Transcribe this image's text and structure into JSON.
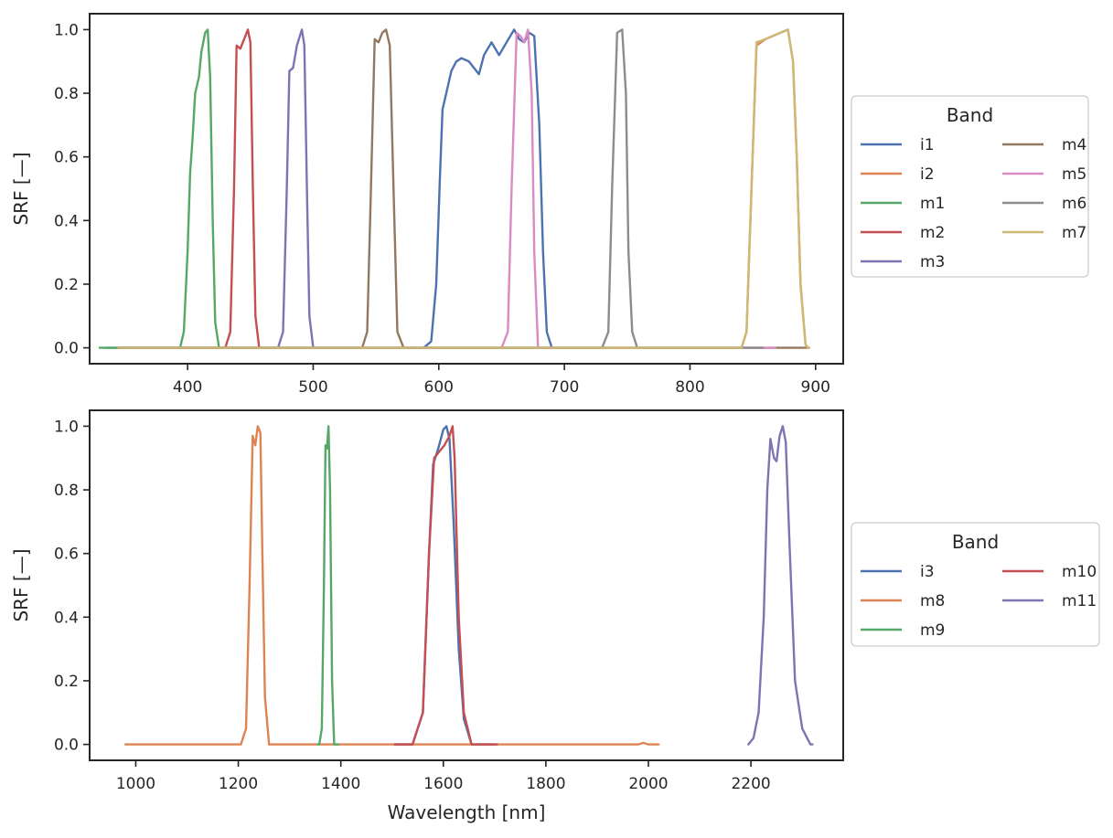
{
  "colors": {
    "i1": "#4c72b0",
    "i2": "#dd8452",
    "m1": "#55a868",
    "m2": "#c44e52",
    "m3": "#8172b3",
    "m4": "#937860",
    "m5": "#da8bc3",
    "m6": "#8c8c8c",
    "m7": "#ccb974",
    "i3": "#4c72b0",
    "m8": "#dd8452",
    "m9": "#55a868",
    "m10": "#c44e52",
    "m11": "#8172b3"
  },
  "chart_data": [
    {
      "type": "line",
      "title": "",
      "xlabel": "",
      "ylabel": "SRF [—]",
      "xlim": [
        322,
        922
      ],
      "ylim": [
        -0.05,
        1.05
      ],
      "xticks": [
        400,
        500,
        600,
        700,
        800,
        900
      ],
      "yticks": [
        0.0,
        0.2,
        0.4,
        0.6,
        0.8,
        1.0
      ],
      "grid": false,
      "legend": {
        "title": "Band",
        "placement": "outside-right",
        "columns": 2
      },
      "series": [
        {
          "name": "i1",
          "zero_range": [
            335,
            690
          ],
          "points": [
            [
              588,
              0
            ],
            [
              594,
              0.02
            ],
            [
              598,
              0.2
            ],
            [
              601,
              0.55
            ],
            [
              603,
              0.75
            ],
            [
              606,
              0.8
            ],
            [
              610,
              0.87
            ],
            [
              614,
              0.9
            ],
            [
              618,
              0.91
            ],
            [
              624,
              0.9
            ],
            [
              628,
              0.88
            ],
            [
              632,
              0.86
            ],
            [
              636,
              0.92
            ],
            [
              642,
              0.96
            ],
            [
              648,
              0.92
            ],
            [
              654,
              0.96
            ],
            [
              660,
              1.0
            ],
            [
              664,
              0.97
            ],
            [
              668,
              0.96
            ],
            [
              672,
              0.99
            ],
            [
              676,
              0.98
            ],
            [
              680,
              0.7
            ],
            [
              683,
              0.3
            ],
            [
              686,
              0.05
            ],
            [
              690,
              0
            ]
          ]
        },
        {
          "name": "i2",
          "zero_range": [
            345,
            885
          ],
          "points": [
            [
              841,
              0
            ],
            [
              845,
              0.05
            ],
            [
              849,
              0.5
            ],
            [
              853,
              0.95
            ],
            [
              860,
              0.97
            ],
            [
              866,
              0.98
            ],
            [
              872,
              0.99
            ],
            [
              878,
              1.0
            ],
            [
              882,
              0.9
            ],
            [
              885,
              0.6
            ],
            [
              888,
              0.2
            ],
            [
              892,
              0.01
            ],
            [
              894,
              0
            ]
          ]
        },
        {
          "name": "m1",
          "zero_range": [
            330,
            430
          ],
          "points": [
            [
              394,
              0
            ],
            [
              397,
              0.05
            ],
            [
              400,
              0.3
            ],
            [
              402,
              0.55
            ],
            [
              404,
              0.66
            ],
            [
              406,
              0.8
            ],
            [
              409,
              0.85
            ],
            [
              411,
              0.93
            ],
            [
              414,
              0.99
            ],
            [
              416,
              1.0
            ],
            [
              418,
              0.85
            ],
            [
              420,
              0.4
            ],
            [
              422,
              0.08
            ],
            [
              425,
              0
            ]
          ]
        },
        {
          "name": "m2",
          "zero_range": [
            345,
            465
          ],
          "points": [
            [
              430,
              0
            ],
            [
              434,
              0.05
            ],
            [
              437,
              0.5
            ],
            [
              439,
              0.95
            ],
            [
              442,
              0.94
            ],
            [
              445,
              0.97
            ],
            [
              448,
              1.0
            ],
            [
              450,
              0.96
            ],
            [
              452,
              0.5
            ],
            [
              454,
              0.1
            ],
            [
              457,
              0
            ]
          ]
        },
        {
          "name": "m3",
          "zero_range": [
            345,
            515
          ],
          "points": [
            [
              472,
              0
            ],
            [
              476,
              0.05
            ],
            [
              479,
              0.5
            ],
            [
              481,
              0.87
            ],
            [
              484,
              0.88
            ],
            [
              487,
              0.95
            ],
            [
              491,
              1.0
            ],
            [
              493,
              0.95
            ],
            [
              495,
              0.5
            ],
            [
              497,
              0.1
            ],
            [
              500,
              0
            ]
          ]
        },
        {
          "name": "m4",
          "zero_range": [
            345,
            895
          ],
          "points": [
            [
              539,
              0
            ],
            [
              543,
              0.05
            ],
            [
              546,
              0.5
            ],
            [
              549,
              0.97
            ],
            [
              552,
              0.96
            ],
            [
              555,
              0.99
            ],
            [
              558,
              1.0
            ],
            [
              561,
              0.95
            ],
            [
              564,
              0.5
            ],
            [
              567,
              0.05
            ],
            [
              572,
              0
            ]
          ]
        },
        {
          "name": "m5",
          "zero_range": [
            345,
            868
          ],
          "points": [
            [
              650,
              0
            ],
            [
              655,
              0.05
            ],
            [
              658,
              0.5
            ],
            [
              662,
              0.99
            ],
            [
              665,
              0.98
            ],
            [
              668,
              0.96
            ],
            [
              671,
              1.0
            ],
            [
              674,
              0.8
            ],
            [
              676,
              0.3
            ],
            [
              679,
              0
            ]
          ]
        },
        {
          "name": "m6",
          "zero_range": [
            345,
            858
          ],
          "points": [
            [
              730,
              0
            ],
            [
              735,
              0.05
            ],
            [
              738,
              0.5
            ],
            [
              742,
              0.99
            ],
            [
              746,
              1.0
            ],
            [
              749,
              0.8
            ],
            [
              751,
              0.3
            ],
            [
              754,
              0.05
            ],
            [
              758,
              0
            ]
          ]
        },
        {
          "name": "m7",
          "zero_range": [
            345,
            895
          ],
          "points": [
            [
              841,
              0
            ],
            [
              845,
              0.05
            ],
            [
              849,
              0.5
            ],
            [
              853,
              0.96
            ],
            [
              860,
              0.97
            ],
            [
              866,
              0.98
            ],
            [
              872,
              0.99
            ],
            [
              878,
              1.0
            ],
            [
              882,
              0.9
            ],
            [
              885,
              0.6
            ],
            [
              888,
              0.2
            ],
            [
              892,
              0.01
            ],
            [
              894,
              0
            ]
          ]
        }
      ]
    },
    {
      "type": "line",
      "title": "",
      "xlabel": "Wavelength [nm]",
      "ylabel": "SRF [—]",
      "xlim": [
        910,
        2380
      ],
      "ylim": [
        -0.05,
        1.05
      ],
      "xticks": [
        1000,
        1200,
        1400,
        1600,
        1800,
        2000,
        2200
      ],
      "yticks": [
        0.0,
        0.2,
        0.4,
        0.6,
        0.8,
        1.0
      ],
      "grid": false,
      "legend": {
        "title": "Band",
        "placement": "outside-right",
        "columns": 2
      },
      "series": [
        {
          "name": "i3",
          "zero_range": [
            1505,
            1700
          ],
          "points": [
            [
              1540,
              0
            ],
            [
              1560,
              0.1
            ],
            [
              1572,
              0.6
            ],
            [
              1580,
              0.88
            ],
            [
              1590,
              0.93
            ],
            [
              1600,
              0.99
            ],
            [
              1606,
              1.0
            ],
            [
              1612,
              0.96
            ],
            [
              1620,
              0.7
            ],
            [
              1630,
              0.3
            ],
            [
              1640,
              0.08
            ],
            [
              1655,
              0
            ]
          ]
        },
        {
          "name": "m8",
          "zero_range": [
            980,
            2020
          ],
          "points": [
            [
              1205,
              0
            ],
            [
              1215,
              0.05
            ],
            [
              1222,
              0.5
            ],
            [
              1228,
              0.97
            ],
            [
              1233,
              0.94
            ],
            [
              1238,
              1.0
            ],
            [
              1243,
              0.98
            ],
            [
              1247,
              0.6
            ],
            [
              1252,
              0.15
            ],
            [
              1260,
              0
            ],
            [
              1980,
              0
            ],
            [
              1990,
              0.005
            ],
            [
              2000,
              0
            ]
          ]
        },
        {
          "name": "m9",
          "zero_range": [
            1355,
            1395
          ],
          "points": [
            [
              1358,
              0
            ],
            [
              1363,
              0.05
            ],
            [
              1367,
              0.5
            ],
            [
              1370,
              0.94
            ],
            [
              1373,
              0.93
            ],
            [
              1376,
              1.0
            ],
            [
              1379,
              0.8
            ],
            [
              1383,
              0.2
            ],
            [
              1387,
              0
            ]
          ]
        },
        {
          "name": "m10",
          "zero_range": [
            1505,
            1705
          ],
          "points": [
            [
              1540,
              0
            ],
            [
              1560,
              0.1
            ],
            [
              1572,
              0.6
            ],
            [
              1582,
              0.9
            ],
            [
              1592,
              0.92
            ],
            [
              1602,
              0.94
            ],
            [
              1612,
              0.97
            ],
            [
              1618,
              1.0
            ],
            [
              1622,
              0.9
            ],
            [
              1630,
              0.4
            ],
            [
              1640,
              0.1
            ],
            [
              1655,
              0
            ]
          ]
        },
        {
          "name": "m11",
          "zero_range": [
            2195,
            2320
          ],
          "points": [
            [
              2195,
              0
            ],
            [
              2205,
              0.02
            ],
            [
              2215,
              0.1
            ],
            [
              2225,
              0.4
            ],
            [
              2232,
              0.8
            ],
            [
              2238,
              0.96
            ],
            [
              2245,
              0.9
            ],
            [
              2250,
              0.89
            ],
            [
              2256,
              0.97
            ],
            [
              2262,
              1.0
            ],
            [
              2268,
              0.95
            ],
            [
              2276,
              0.6
            ],
            [
              2286,
              0.2
            ],
            [
              2300,
              0.05
            ],
            [
              2316,
              0
            ]
          ]
        }
      ]
    }
  ]
}
